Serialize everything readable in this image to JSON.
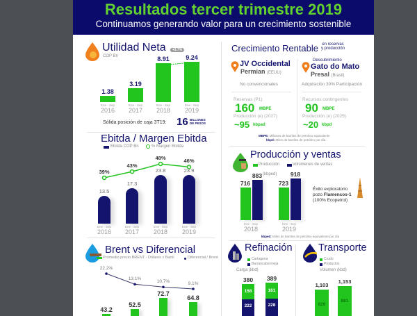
{
  "header": {
    "title": "Resultados tercer trimestre 2019",
    "subtitle": "Continuamos generando valor para un crecimiento sostenible"
  },
  "colors": {
    "navy": "#14146e",
    "green": "#22c41e",
    "header_bg": "#0b0b6b",
    "title_green": "#62d22f",
    "orange": "#f07f1e",
    "blue": "#1b9be0"
  },
  "utilidad": {
    "title": "Utilidad Neta",
    "unit": "COP Bn",
    "icon": "oil-drop-money-icon",
    "caja_label": "Sólida posición de caja 3T19:",
    "caja_value": "16",
    "caja_unit_1": "BILLONES",
    "caja_unit_2": "DE PESOS"
  },
  "ebitda": {
    "title": "Ebitda / Margen Ebitda",
    "legend_bar": "Ebitda COP Bn",
    "legend_line": "% Margen Ebitda"
  },
  "brent": {
    "title": "Brent vs Diferencial",
    "icon": "water-drop-ship-icon",
    "legend_bar": "Promedio precio BRENT - Dólares x Barril",
    "legend_line": "Diferencial / Brent"
  },
  "crecimiento": {
    "title": "Crecimiento Rentable",
    "subtitle_1": "en reservas",
    "subtitle_2": "y producción",
    "left": {
      "name": "JV Occidental",
      "field": "Permian",
      "country": "(EEUU)",
      "desc": "No convencionales",
      "res_label": "Reservas (P1)",
      "res_value": "160",
      "res_unit": "MBPE",
      "prod_label": "Producción (e) (2027)",
      "prod_value": "~95",
      "prod_unit": "kbpad"
    },
    "right": {
      "kicker": "Descubrimiento",
      "name": "Gato do Mato",
      "field": "Presal",
      "country": "(Brasil)",
      "desc": "Adquisición 30% Participación",
      "res_label": "Recursos contingentes",
      "res_value": "90",
      "res_unit": "MBPE",
      "prod_label": "Producción (e) (2025)",
      "prod_value": "~20",
      "prod_unit": "kbpd"
    },
    "note_1_key": "MBPE:",
    "note_1": "Millones de barriles de petróleo equivalente",
    "note_2_key": "kbpd:",
    "note_2": "Miles de barriles de petróleo por día"
  },
  "produccion": {
    "title": "Producción y ventas",
    "legend_1": "Producción",
    "legend_2": "Volúmenes de ventas",
    "unit": "(kbped)",
    "exito_1": "Éxito exploratorio",
    "exito_2a": "pozo ",
    "exito_2b": "Flamencos-1",
    "exito_3": "(100% Ecopetrol)",
    "note_key": "kbped:",
    "note": "Miles de barriles de petróleo equivalente por día"
  },
  "refinacion": {
    "title": "Refinación",
    "legend_1": "Cartagena",
    "legend_2": "Barrancabermeja",
    "unit": "Carga (kbd)"
  },
  "transporte": {
    "title": "Transporte",
    "legend_1": "Crudo",
    "legend_2": "Productos",
    "unit": "Volumen (kbd)"
  },
  "chart_data": [
    {
      "type": "bar",
      "key": "utilidad",
      "title": "Utilidad Neta",
      "ylabel": "COP Bn",
      "categories": [
        {
          "period": "Ene - Sep",
          "year": "2016"
        },
        {
          "period": "Ene - Sep",
          "year": "2017"
        },
        {
          "period": "Ene - Sep",
          "year": "2018"
        },
        {
          "period": "Ene - Sep",
          "year": "2019"
        }
      ],
      "values": [
        1.38,
        3.19,
        8.91,
        9.24
      ],
      "value_labels": [
        "1.38",
        "3.19",
        "8.91",
        "9.24"
      ],
      "annotation": "+3.7%"
    },
    {
      "type": "bar+line",
      "key": "ebitda",
      "title": "Ebitda / Margen Ebitda",
      "categories": [
        {
          "period": "Ene - Sep",
          "year": "2016"
        },
        {
          "period": "Ene - Sep",
          "year": "2017"
        },
        {
          "period": "Ene - Sep",
          "year": "2018"
        },
        {
          "period": "Ene - Sep",
          "year": "2019"
        }
      ],
      "series": [
        {
          "name": "Ebitda COP Bn",
          "values": [
            13.5,
            17.3,
            23.8,
            23.9
          ],
          "labels": [
            "13.5",
            "17.3",
            "23.8",
            "23.9"
          ]
        },
        {
          "name": "% Margen Ebitda",
          "values": [
            39,
            43,
            48,
            46
          ],
          "labels": [
            "39%",
            "43%",
            "48%",
            "46%"
          ]
        }
      ]
    },
    {
      "type": "bar+line",
      "key": "brent",
      "title": "Brent vs Diferencial",
      "series": [
        {
          "name": "Promedio precio BRENT - Dólares x Barril",
          "values": [
            43.2,
            52.5,
            72.7,
            64.8
          ],
          "labels": [
            "43.2",
            "52.5",
            "72.7",
            "64.8"
          ]
        },
        {
          "name": "Diferencial / Brent",
          "values": [
            22.2,
            13.1,
            10.7,
            9.1
          ],
          "labels": [
            "22.2%",
            "13.1%",
            "10.7%",
            "9.1%"
          ]
        }
      ]
    },
    {
      "type": "bar",
      "key": "produccion",
      "title": "Producción y ventas",
      "ylabel": "(kbped)",
      "categories": [
        {
          "period": "Ene - Sep",
          "year": "2018"
        },
        {
          "period": "Ene - Sep",
          "year": "2019"
        }
      ],
      "series": [
        {
          "name": "Producción",
          "values": [
            716,
            723
          ]
        },
        {
          "name": "Volúmenes de ventas",
          "values": [
            883,
            918
          ]
        }
      ]
    },
    {
      "type": "stacked-bar",
      "key": "refinacion",
      "title": "Refinación",
      "ylabel": "Carga (kbd)",
      "totals": [
        380,
        389
      ],
      "series": [
        {
          "name": "Cartagena",
          "values": [
            158,
            161
          ]
        },
        {
          "name": "Barrancabermeja",
          "values": [
            222,
            228
          ]
        }
      ]
    },
    {
      "type": "stacked-bar",
      "key": "transporte",
      "title": "Transporte",
      "ylabel": "Volumen (kbd)",
      "totals": [
        1103,
        1153
      ],
      "total_labels": [
        "1,103",
        "1,153"
      ],
      "series": [
        {
          "name": "Crudo",
          "values": [
            829,
            881
          ]
        }
      ]
    }
  ]
}
